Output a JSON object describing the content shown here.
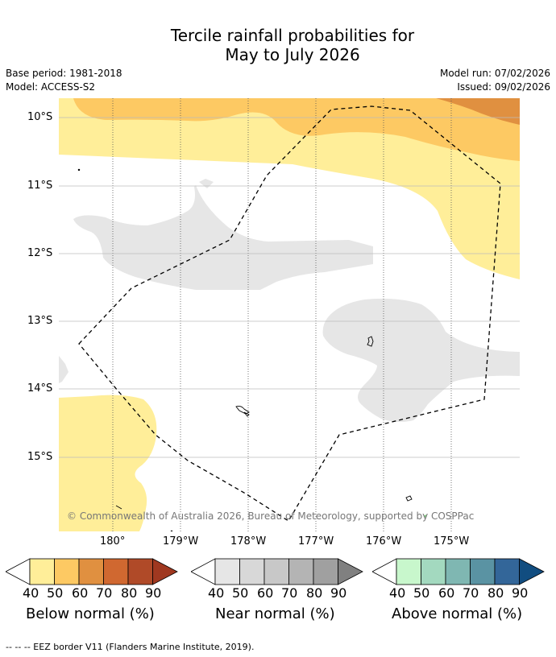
{
  "title": {
    "line1": "Tercile rainfall probabilities for",
    "line2": "May to July 2026"
  },
  "meta": {
    "base_period": "Base period: 1981-2018",
    "model": "Model: ACCESS-S2",
    "model_run": "Model run: 07/02/2026",
    "issued": "Issued: 09/02/2026"
  },
  "map": {
    "lat_labels": [
      "10°S",
      "11°S",
      "12°S",
      "13°S",
      "14°S",
      "15°S"
    ],
    "lon_labels": [
      "180°",
      "179°W",
      "178°W",
      "177°W",
      "176°W",
      "175°W"
    ],
    "copyright": "© Commonwealth of Australia 2026, Bureau of Meteorology, supported by COSPPac"
  },
  "colorbars": [
    {
      "name": "below",
      "title": "Below normal (%)",
      "ticks": [
        "40",
        "50",
        "60",
        "70",
        "80",
        "90"
      ],
      "colors": [
        "#ffee99",
        "#fdc963",
        "#e09040",
        "#d06830",
        "#b04a28",
        "#a03820"
      ]
    },
    {
      "name": "near",
      "title": "Near normal (%)",
      "ticks": [
        "40",
        "50",
        "60",
        "70",
        "80",
        "90"
      ],
      "colors": [
        "#e6e6e6",
        "#d8d8d8",
        "#c8c8c8",
        "#b4b4b4",
        "#a0a0a0",
        "#808080"
      ]
    },
    {
      "name": "above",
      "title": "Above normal (%)",
      "ticks": [
        "40",
        "50",
        "60",
        "70",
        "80",
        "90"
      ],
      "colors": [
        "#c8f7cc",
        "#a3d9bf",
        "#7fb7b2",
        "#5a93a3",
        "#336699",
        "#114d80"
      ]
    }
  ],
  "footnote": "--  --  -- EEZ border V11 (Flanders Marine Institute, 2019)."
}
